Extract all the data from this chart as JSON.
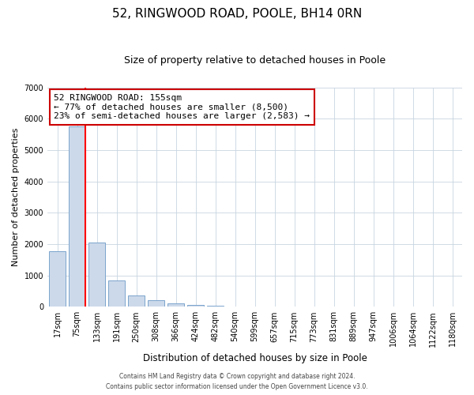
{
  "title": "52, RINGWOOD ROAD, POOLE, BH14 0RN",
  "subtitle": "Size of property relative to detached houses in Poole",
  "xlabel": "Distribution of detached houses by size in Poole",
  "ylabel": "Number of detached properties",
  "bar_labels": [
    "17sqm",
    "75sqm",
    "133sqm",
    "191sqm",
    "250sqm",
    "308sqm",
    "366sqm",
    "424sqm",
    "482sqm",
    "540sqm",
    "599sqm",
    "657sqm",
    "715sqm",
    "773sqm",
    "831sqm",
    "889sqm",
    "947sqm",
    "1006sqm",
    "1064sqm",
    "1122sqm",
    "1180sqm"
  ],
  "bar_values": [
    1780,
    5750,
    2050,
    830,
    360,
    220,
    100,
    55,
    25,
    15,
    10,
    5,
    0,
    0,
    0,
    0,
    0,
    0,
    0,
    0,
    0
  ],
  "bar_color": "#ccd9ea",
  "bar_edge_color": "#7ba4cc",
  "red_line_index": 1,
  "ylim": [
    0,
    7000
  ],
  "yticks": [
    0,
    1000,
    2000,
    3000,
    4000,
    5000,
    6000,
    7000
  ],
  "annotation_title": "52 RINGWOOD ROAD: 155sqm",
  "annotation_line1": "← 77% of detached houses are smaller (8,500)",
  "annotation_line2": "23% of semi-detached houses are larger (2,583) →",
  "annotation_box_color": "#ffffff",
  "annotation_box_edge": "#cc0000",
  "footer1": "Contains HM Land Registry data © Crown copyright and database right 2024.",
  "footer2": "Contains public sector information licensed under the Open Government Licence v3.0."
}
